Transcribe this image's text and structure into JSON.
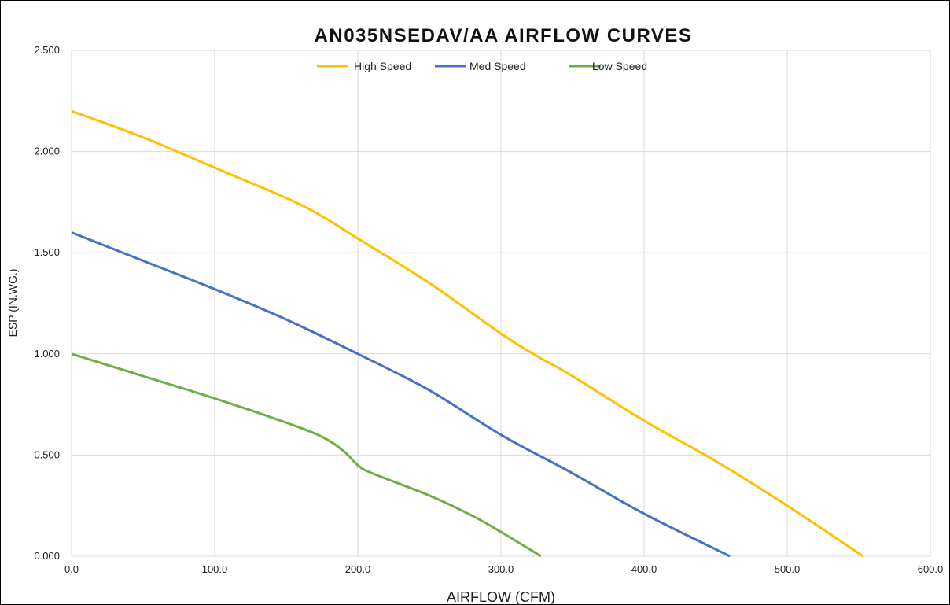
{
  "chart_data": {
    "type": "line",
    "title": "AN035NSEDAV/AA AIRFLOW CURVES",
    "xlabel": "AIRFLOW (CFM)",
    "ylabel": "ESP (IN.WG.)",
    "xlim": [
      0,
      600
    ],
    "ylim": [
      0,
      2.5
    ],
    "x_ticks": [
      "0.0",
      "100.0",
      "200.0",
      "300.0",
      "400.0",
      "500.0",
      "600.0"
    ],
    "y_ticks": [
      "0.000",
      "0.500",
      "1.000",
      "1.500",
      "2.000",
      "2.500"
    ],
    "grid": true,
    "legend_position": "top-center",
    "series": [
      {
        "name": "High Speed",
        "color": "#FFC000",
        "points": [
          [
            0,
            2.2
          ],
          [
            50,
            2.07
          ],
          [
            100,
            1.92
          ],
          [
            150,
            1.77
          ],
          [
            175,
            1.68
          ],
          [
            200,
            1.57
          ],
          [
            250,
            1.35
          ],
          [
            300,
            1.1
          ],
          [
            325,
            0.99
          ],
          [
            350,
            0.89
          ],
          [
            400,
            0.67
          ],
          [
            450,
            0.47
          ],
          [
            500,
            0.25
          ],
          [
            553,
            0.0
          ]
        ]
      },
      {
        "name": "Med Speed",
        "color": "#4472C4",
        "points": [
          [
            0,
            1.6
          ],
          [
            50,
            1.46
          ],
          [
            100,
            1.32
          ],
          [
            150,
            1.17
          ],
          [
            200,
            1.0
          ],
          [
            250,
            0.82
          ],
          [
            300,
            0.6
          ],
          [
            350,
            0.41
          ],
          [
            400,
            0.21
          ],
          [
            460,
            0.0
          ]
        ]
      },
      {
        "name": "Low Speed",
        "color": "#70AD47",
        "points": [
          [
            0,
            1.0
          ],
          [
            50,
            0.89
          ],
          [
            100,
            0.78
          ],
          [
            150,
            0.66
          ],
          [
            175,
            0.59
          ],
          [
            190,
            0.52
          ],
          [
            200,
            0.45
          ],
          [
            210,
            0.41
          ],
          [
            250,
            0.3
          ],
          [
            280,
            0.2
          ],
          [
            300,
            0.12
          ],
          [
            328,
            0.0
          ]
        ]
      }
    ]
  }
}
